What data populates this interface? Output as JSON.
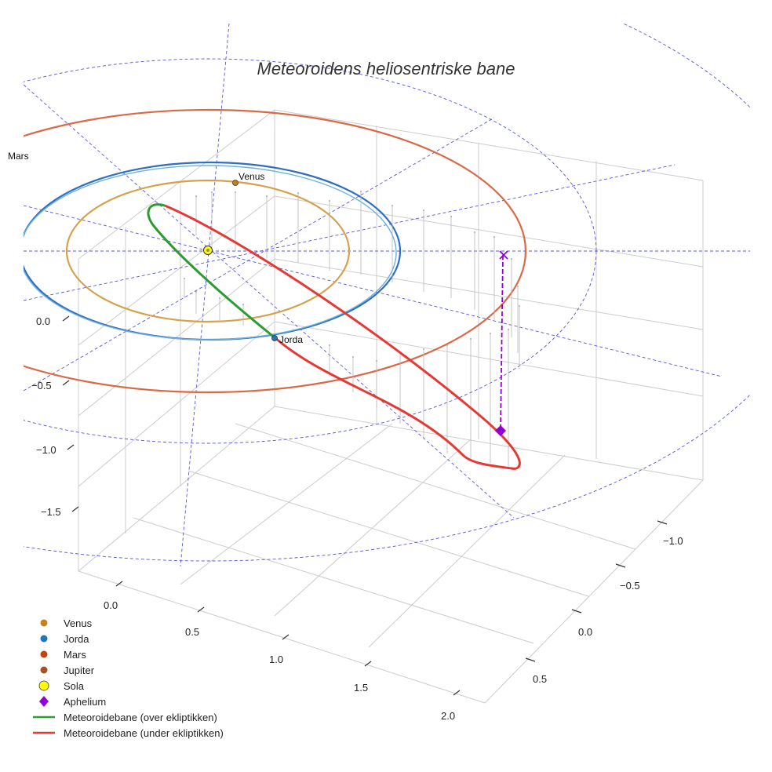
{
  "chart_data": {
    "type": "line",
    "title": "Meteoroidens heliosentriske bane",
    "x_axis": {
      "tick_labels": [
        "0.0",
        "0.5",
        "1.0",
        "1.5",
        "2.0"
      ]
    },
    "y_axis": {
      "tick_labels": [
        "−1.0",
        "−0.5",
        "0.0",
        "0.5"
      ]
    },
    "z_axis": {
      "tick_labels": [
        "0.0",
        "−0.5",
        "−1.0",
        "−1.5"
      ]
    },
    "grid": true,
    "legend_position": "bottom-left",
    "orbits": [
      {
        "name": "Venus",
        "radius_au": 0.72,
        "color": "#d4a24c"
      },
      {
        "name": "Jorda",
        "radius_au": 1.0,
        "color": "#2f6fbf"
      },
      {
        "name": "Mars",
        "radius_au": 1.52,
        "color": "#d96a48"
      }
    ],
    "point_labels": [
      "Venus",
      "Jorda",
      "Mars"
    ],
    "legend": [
      {
        "label": "Venus",
        "marker": "circle",
        "color": "#c87f1e"
      },
      {
        "label": "Jorda",
        "marker": "circle",
        "color": "#1f77b4"
      },
      {
        "label": "Mars",
        "marker": "circle",
        "color": "#c1440e"
      },
      {
        "label": "Jupiter",
        "marker": "circle",
        "color": "#a0522d"
      },
      {
        "label": "Sola",
        "marker": "circle-large",
        "color": "#ffff00"
      },
      {
        "label": "Aphelium",
        "marker": "diamond",
        "color": "#9400d3"
      },
      {
        "label": "Meteoroidebane (over ekliptikken)",
        "marker": "line",
        "color": "#2ca02c"
      },
      {
        "label": "Meteoroidebane (under ekliptikken)",
        "marker": "line",
        "color": "#e53935"
      }
    ],
    "colors": {
      "green_orbit": "#2e9b32",
      "red_orbit": "#e53935",
      "aphelion": "#9400d3",
      "guide_lines": "#5555dd",
      "grid": "#cccccc"
    }
  }
}
